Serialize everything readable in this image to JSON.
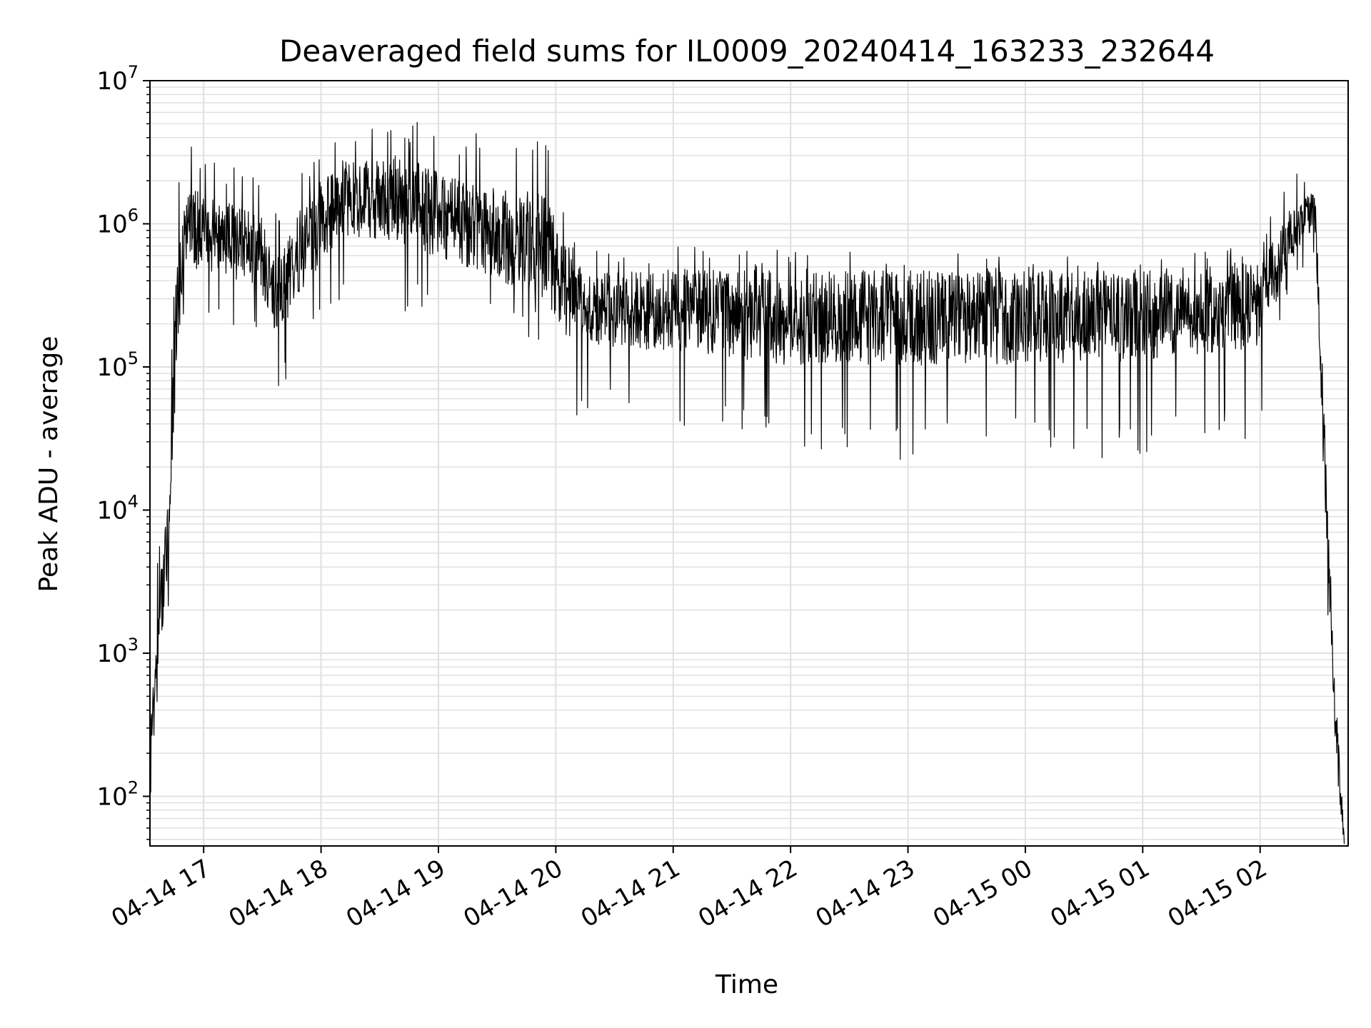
{
  "chart_data": {
    "type": "line",
    "title": "Deaveraged field sums for IL0009_20240414_163233_232644",
    "xlabel": "Time",
    "ylabel": "Peak ADU - average",
    "yscale": "log",
    "ylim": [
      45,
      10000000
    ],
    "xlim": [
      "2024-04-14 16:32:33",
      "2024-04-15 02:45:00"
    ],
    "grid": true,
    "line_color": "#000000",
    "grid_color": "#e0e0e0",
    "x_ticks": [
      {
        "label": "04-14 17",
        "t": "2024-04-14 17:00"
      },
      {
        "label": "04-14 18",
        "t": "2024-04-14 18:00"
      },
      {
        "label": "04-14 19",
        "t": "2024-04-14 19:00"
      },
      {
        "label": "04-14 20",
        "t": "2024-04-14 20:00"
      },
      {
        "label": "04-14 21",
        "t": "2024-04-14 21:00"
      },
      {
        "label": "04-14 22",
        "t": "2024-04-14 22:00"
      },
      {
        "label": "04-14 23",
        "t": "2024-04-14 23:00"
      },
      {
        "label": "04-15 00",
        "t": "2024-04-15 00:00"
      },
      {
        "label": "04-15 01",
        "t": "2024-04-15 01:00"
      },
      {
        "label": "04-15 02",
        "t": "2024-04-15 02:00"
      }
    ],
    "y_ticks": [
      {
        "value": 100,
        "base": "10",
        "exp": "2"
      },
      {
        "value": 1000,
        "base": "10",
        "exp": "3"
      },
      {
        "value": 10000,
        "base": "10",
        "exp": "4"
      },
      {
        "value": 100000,
        "base": "10",
        "exp": "5"
      },
      {
        "value": 1000000,
        "base": "10",
        "exp": "6"
      },
      {
        "value": 10000000,
        "base": "10",
        "exp": "7"
      }
    ],
    "series": [
      {
        "style": "noisy-envelope",
        "x": [
          "2024-04-14 16:32:33",
          "2024-04-14 16:38",
          "2024-04-14 16:42",
          "2024-04-14 16:46",
          "2024-04-14 16:50",
          "2024-04-14 16:55",
          "2024-04-14 17:10",
          "2024-04-14 17:30",
          "2024-04-14 17:38",
          "2024-04-14 17:50",
          "2024-04-14 18:10",
          "2024-04-14 18:40",
          "2024-04-14 19:20",
          "2024-04-14 19:55",
          "2024-04-14 20:05",
          "2024-04-14 20:15",
          "2024-04-14 21:00",
          "2024-04-14 22:00",
          "2024-04-14 23:00",
          "2024-04-15 00:00",
          "2024-04-15 01:00",
          "2024-04-15 02:00",
          "2024-04-15 02:15",
          "2024-04-15 02:28",
          "2024-04-15 02:32",
          "2024-04-15 02:38",
          "2024-04-15 02:43"
        ],
        "median": [
          150,
          2000,
          6000,
          200000,
          800000,
          900000,
          800000,
          600000,
          300000,
          700000,
          1500000,
          1500000,
          900000,
          700000,
          350000,
          250000,
          250000,
          220000,
          220000,
          220000,
          230000,
          280000,
          800000,
          1300000,
          50000,
          500,
          45
        ],
        "upper": [
          1200,
          9000,
          30000,
          1500000,
          3500000,
          3500000,
          2800000,
          2200000,
          1200000,
          2500000,
          4500000,
          5500000,
          4500000,
          6500000,
          1200000,
          650000,
          750000,
          650000,
          650000,
          600000,
          600000,
          700000,
          2800000,
          2000000,
          200000,
          2000,
          100
        ],
        "lower": [
          50,
          500,
          1500,
          25000,
          200000,
          200000,
          200000,
          150000,
          55000,
          100000,
          300000,
          250000,
          200000,
          150000,
          40000,
          50000,
          40000,
          22000,
          22000,
          22000,
          22000,
          30000,
          400000,
          600000,
          10000,
          200,
          45
        ]
      }
    ]
  }
}
